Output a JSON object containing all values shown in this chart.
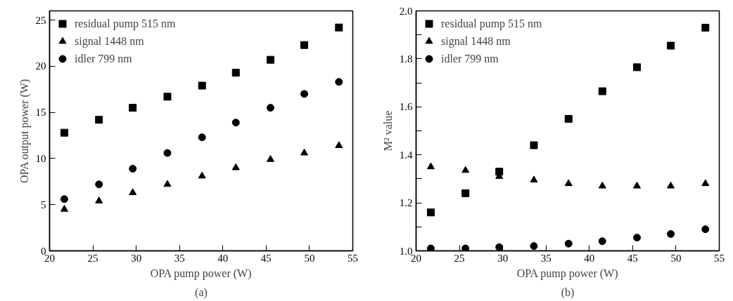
{
  "chart_data": [
    {
      "type": "scatter",
      "xlabel": "OPA pump power (W)",
      "ylabel": "OPA output power (W)",
      "annotations": [
        "(a)"
      ],
      "x": [
        21.7,
        25.7,
        29.6,
        33.6,
        37.6,
        41.5,
        45.5,
        49.4,
        53.4
      ],
      "xlim": [
        20,
        55
      ],
      "xticks": [
        20,
        25,
        30,
        35,
        40,
        45,
        50,
        55
      ],
      "ylim": [
        0,
        26
      ],
      "yticks": [
        0,
        5,
        10,
        15,
        20,
        25
      ],
      "grid": false,
      "legend": "top left",
      "series": [
        {
          "name": "residual pump 515 nm",
          "color": "#000000",
          "marker": "square",
          "values": [
            12.8,
            14.2,
            15.5,
            16.7,
            17.9,
            19.3,
            20.7,
            22.3,
            24.2
          ]
        },
        {
          "name": "signal 1448 nm",
          "color": "#000000",
          "marker": "triangle",
          "values": [
            4.5,
            5.4,
            6.3,
            7.2,
            8.1,
            9.0,
            9.9,
            10.6,
            11.4
          ]
        },
        {
          "name": "idler 799 nm",
          "color": "#000000",
          "marker": "circle",
          "values": [
            5.6,
            7.2,
            8.9,
            10.6,
            12.3,
            13.9,
            15.5,
            17.0,
            18.3
          ]
        }
      ]
    },
    {
      "type": "scatter",
      "xlabel": "OPA pump power (W)",
      "ylabel": "M² value",
      "annotations": [
        "(b)"
      ],
      "x": [
        21.7,
        25.7,
        29.6,
        33.6,
        37.6,
        41.5,
        45.5,
        49.4,
        53.4
      ],
      "xlim": [
        20,
        55
      ],
      "xticks": [
        20,
        25,
        30,
        35,
        40,
        45,
        50,
        55
      ],
      "ylim": [
        1.0,
        2.0
      ],
      "yticks": [
        {
          "value": 1.0,
          "label": "1.0"
        },
        {
          "value": 1.1,
          "label": null
        },
        {
          "value": 1.2,
          "label": "1.2"
        },
        {
          "value": 1.3,
          "label": null
        },
        {
          "value": 1.4,
          "label": "1.4"
        },
        {
          "value": 1.5,
          "label": null
        },
        {
          "value": 1.6,
          "label": "1.6"
        },
        {
          "value": 1.7,
          "label": null
        },
        {
          "value": 1.8,
          "label": "1.8"
        },
        {
          "value": 1.9,
          "label": null
        },
        {
          "value": 2.0,
          "label": "2.0"
        }
      ],
      "grid": false,
      "legend": "top left",
      "series": [
        {
          "name": "residual pump 515 nm",
          "color": "#000000",
          "marker": "square",
          "values": [
            1.16,
            1.24,
            1.33,
            1.44,
            1.55,
            1.665,
            1.765,
            1.855,
            1.93
          ]
        },
        {
          "name": "signal 1448 nm",
          "color": "#000000",
          "marker": "triangle",
          "values": [
            1.35,
            1.335,
            1.31,
            1.295,
            1.28,
            1.27,
            1.27,
            1.27,
            1.28
          ]
        },
        {
          "name": "idler 799 nm",
          "color": "#000000",
          "marker": "circle",
          "values": [
            1.01,
            1.01,
            1.015,
            1.02,
            1.03,
            1.04,
            1.055,
            1.07,
            1.09
          ]
        }
      ]
    }
  ]
}
